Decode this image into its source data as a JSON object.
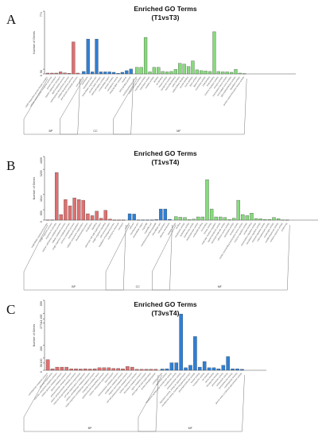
{
  "figure": {
    "panels": [
      {
        "label": "A",
        "title_line1": "Enriched GO Terms",
        "title_line2": "(T1vsT3)"
      },
      {
        "label": "B",
        "title_line1": "Enriched GO Terms",
        "title_line2": "(T1vsT4)"
      },
      {
        "label": "C",
        "title_line1": "Enriched GO Terms",
        "title_line2": "(T3vsT4)"
      }
    ]
  },
  "chart_data": [
    {
      "type": "bar",
      "title": "Enriched GO Terms (T1vsT3)",
      "ylabel": "Number of Genes",
      "yticks": [
        0,
        58,
        774
      ],
      "ylim": [
        0,
        774
      ],
      "groups": [
        {
          "name": "BP",
          "color": "#e07070",
          "categories": [
            "cAMP-dependent protein kinase complex",
            "cellular carbohydrate metabolic process",
            "protein transport",
            "organic substance transport",
            "lipid metabolic process",
            "carbohydrate biosynthetic process",
            "cellular biosynthetic process",
            "glycoprotein metabolic process"
          ],
          "values": [
            10,
            10,
            10,
            25,
            12,
            8,
            395,
            10
          ]
        },
        {
          "name": "CC",
          "color": "#2e7fd6",
          "categories": [
            "cell periphery",
            "membrane",
            "cytoplasmic part",
            "intracellular organelle part",
            "protein-DNA complex",
            "DNA packaging complex",
            "extracellular region",
            "protein complex",
            "cytoplasmic vesicle",
            "FANCM-MHF complex",
            "nucleus",
            "TATA-binding protein"
          ],
          "values": [
            30,
            430,
            25,
            430,
            25,
            25,
            25,
            20,
            8,
            20,
            40,
            60
          ]
        },
        {
          "name": "MF",
          "color": "#86db7c",
          "categories": [
            "methyltransferase activity",
            "oxidoreductase activity",
            "transferase activity",
            "hydrolase activity",
            "catalytic activity",
            "binding",
            "ion binding",
            "kinase activity",
            "transporter activity",
            "nucleotide binding",
            "cation binding",
            "carbohydrate binding",
            "protein binding",
            "heme binding",
            "lyase activity",
            "ligase activity",
            "isomerase activity",
            "DNA binding",
            "RNA binding",
            "enzyme regulator activity",
            "receptor activity",
            "transcription factor activity",
            "microtubule motor activity",
            "glycosyltransferase activity",
            "peptidase activity",
            "protein serine/threonine kinase activity"
          ],
          "values": [
            80,
            80,
            450,
            25,
            80,
            80,
            30,
            25,
            30,
            55,
            130,
            120,
            90,
            160,
            50,
            40,
            35,
            30,
            520,
            30,
            25,
            25,
            20,
            55,
            10,
            5
          ]
        }
      ]
    },
    {
      "type": "bar",
      "title": "Enriched GO Terms (T1vsT4)",
      "ylabel": "Number of Genes",
      "yticks": [
        0,
        650,
        1614,
        3200,
        4009
      ],
      "ylim": [
        0,
        4009
      ],
      "groups": [
        {
          "name": "BP",
          "color": "#e07070",
          "categories": [
            "multicellular organismal process",
            "single-organism process",
            "response to stimulus",
            "organic substance metabolic process",
            "cellular metabolic process",
            "single-organism metabolic process",
            "primary metabolic process",
            "biological regulation",
            "cellular component organization",
            "developmental process",
            "localization",
            "signaling",
            "plant-type cell wall organization",
            "single organism signaling",
            "cell communication",
            "regulation of biological process",
            "response to chemical",
            "transport"
          ],
          "values": [
            20,
            20,
            3000,
            350,
            1300,
            900,
            1400,
            1300,
            1250,
            400,
            280,
            560,
            120,
            620,
            60,
            10,
            10,
            10
          ]
        },
        {
          "name": "CC",
          "color": "#2e7fd6",
          "categories": [
            "nucleus",
            "cell part",
            "membrane part",
            "extracellular region",
            "organelle",
            "organelle part",
            "membrane-bounded organelle",
            "intracellular part",
            "cell periphery",
            "plasma membrane"
          ],
          "values": [
            400,
            380,
            15,
            15,
            15,
            15,
            30,
            700,
            700,
            50
          ]
        },
        {
          "name": "MF",
          "color": "#86db7c",
          "categories": [
            "catalytic activity",
            "binding",
            "transporter activity",
            "hydrolase activity",
            "transferase activity",
            "oxidoreductase activity",
            "nucleotide binding",
            "ion binding",
            "kinase activity",
            "molecular function regulator",
            "signal transducer activity",
            "structural molecule activity",
            "electron carrier activity",
            "antioxidant activity",
            "receptor activity",
            "nucleic acid binding transcription factor activity",
            "enzyme regulator activity",
            "protein binding",
            "transcription regulator activity",
            "translation regulator activity",
            "channel regulator activity",
            "chemoattractant activity",
            "morphogen activity",
            "metallochaperone activity",
            "nutrient reservoir activity",
            "protein tag"
          ],
          "values": [
            220,
            180,
            160,
            30,
            60,
            200,
            200,
            2550,
            700,
            200,
            200,
            160,
            30,
            120,
            1250,
            350,
            280,
            440,
            100,
            80,
            40,
            40,
            160,
            90,
            20,
            10
          ]
        }
      ]
    },
    {
      "type": "bar",
      "title": "Enriched GO Terms (T3vsT4)",
      "ylabel": "Number of Genes",
      "yticks": [
        0,
        58,
        100,
        200,
        377,
        411,
        455,
        559
      ],
      "ylim": [
        0,
        559
      ],
      "groups": [
        {
          "name": "BP",
          "color": "#e07070",
          "categories": [
            "carbohydrate metabolic process",
            "cell wall organization",
            "aromatic compound catabolic process",
            "cellular glucan metabolic process",
            "glucan metabolic process",
            "polysaccharide metabolic process",
            "cellular polysaccharide metabolic process",
            "external encapsulating structure organization",
            "cell wall organization or biogenesis",
            "cellular carbohydrate metabolic process",
            "single-organism carbohydrate metabolic process",
            "response to oxidative stress",
            "polysaccharide biosynthetic process",
            "cellular component organization",
            "lipid transport",
            "hemicellulose metabolic process",
            "xyloglucan metabolic process",
            "organic acid metabolic process",
            "cell wall polysaccharide metabolic process",
            "cellular response to stimulus",
            "secondary metabolic process",
            "lignin metabolic process",
            "plant-type cell wall organization",
            "protein phosphorylation"
          ],
          "values": [
            85,
            12,
            25,
            25,
            25,
            12,
            12,
            10,
            12,
            10,
            12,
            20,
            20,
            20,
            15,
            15,
            12,
            30,
            25,
            8,
            8,
            8,
            8,
            8
          ]
        },
        {
          "name": "MF",
          "color": "#2e7fd6",
          "categories": [
            "catalytic activity",
            "hydrolase activity",
            "xyloglucan:xyloglucosyl transferase activity",
            "transferase activity",
            "oxidoreductase activity",
            "hydrolase activity, acting on glycosyl bonds",
            "transferase activity, transferring glycosyl groups",
            "glucosyltransferase activity",
            "kinase activity",
            "transporter activity",
            "ion binding",
            "heme binding",
            "tetrapyrrole binding",
            "peroxidase activity",
            "antioxidant activity",
            "pectinesterase activity",
            "carbohydrate binding",
            "glucan endo-1,3-beta-D-glucosidase activity"
          ],
          "values": [
            10,
            12,
            60,
            60,
            450,
            20,
            40,
            270,
            25,
            70,
            20,
            20,
            12,
            40,
            110,
            12,
            12,
            8
          ]
        }
      ]
    }
  ]
}
